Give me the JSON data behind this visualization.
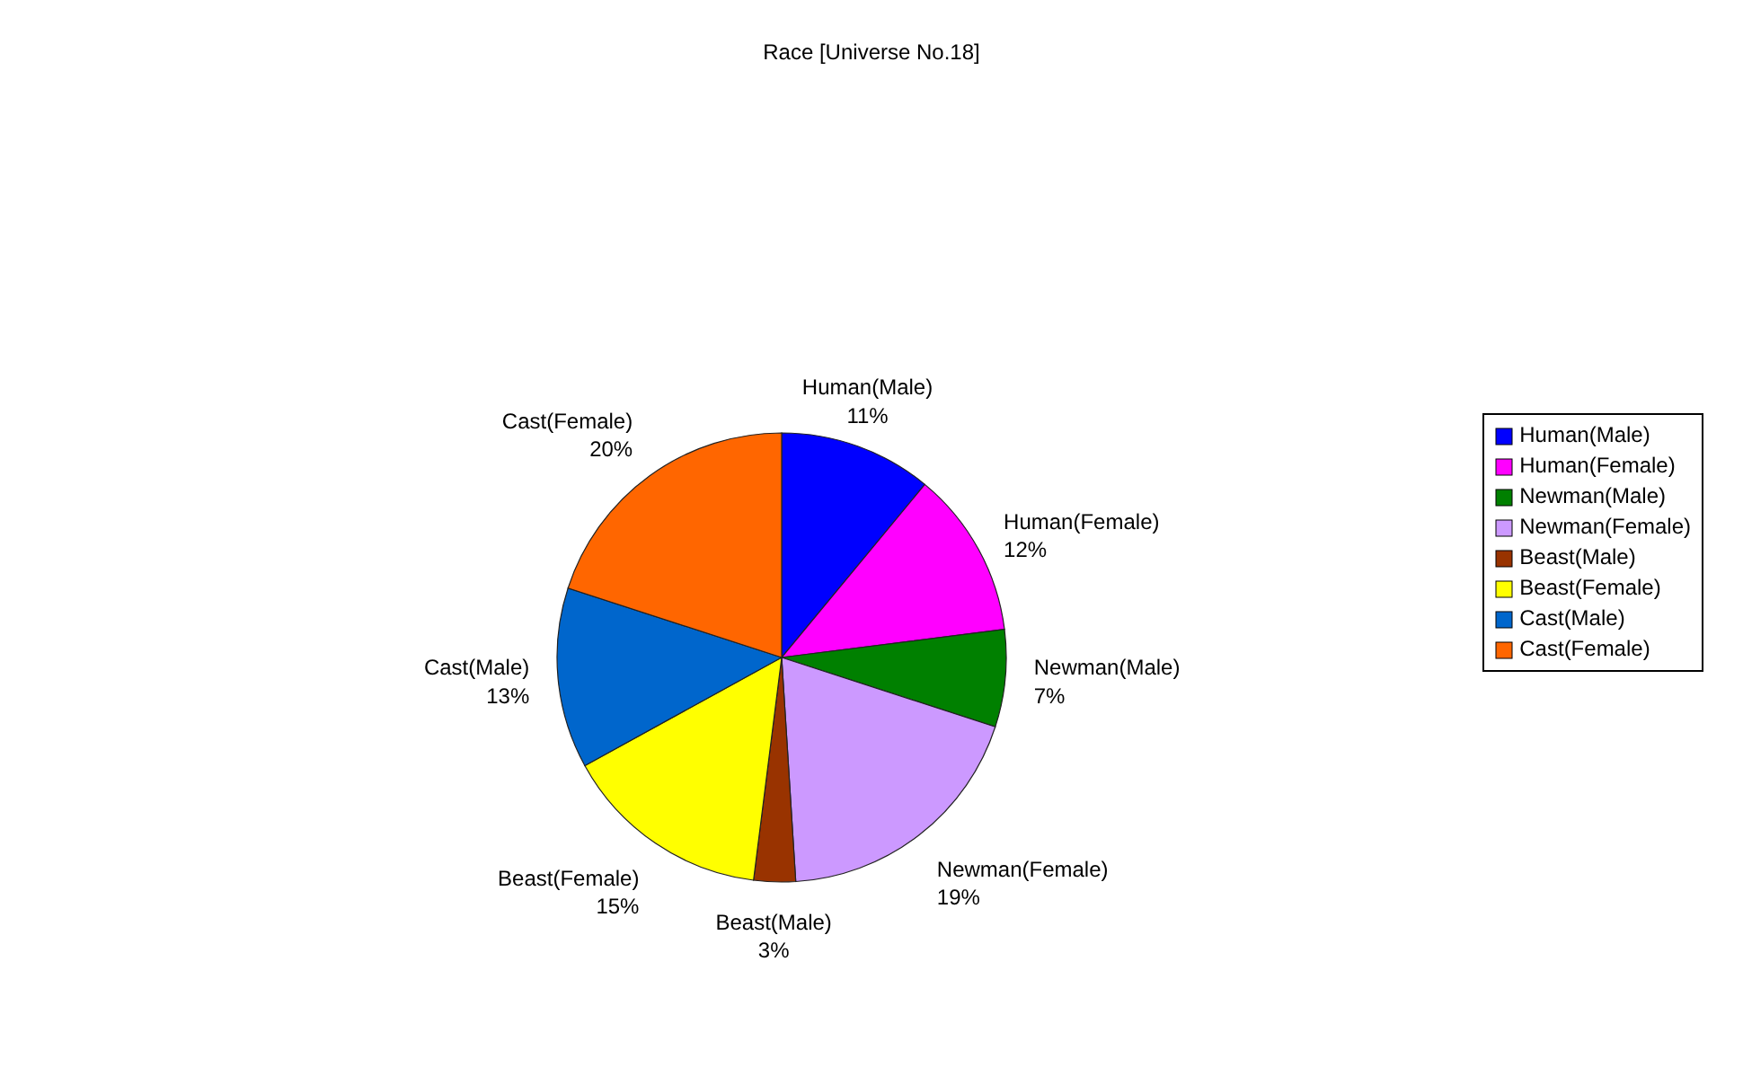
{
  "chart_data": {
    "type": "pie",
    "title": "Race [Universe No.18]",
    "categories": [
      "Human(Male)",
      "Human(Female)",
      "Newman(Male)",
      "Newman(Female)",
      "Beast(Male)",
      "Beast(Female)",
      "Cast(Male)",
      "Cast(Female)"
    ],
    "values": [
      11,
      12,
      7,
      19,
      3,
      15,
      13,
      20
    ],
    "value_labels": [
      "11%",
      "12%",
      "7%",
      "19%",
      "3%",
      "15%",
      "13%",
      "20%"
    ],
    "colors": [
      "#0000ff",
      "#ff00ff",
      "#008000",
      "#cc99ff",
      "#993300",
      "#ffff00",
      "#0066cc",
      "#ff6600"
    ],
    "legend": "right"
  }
}
